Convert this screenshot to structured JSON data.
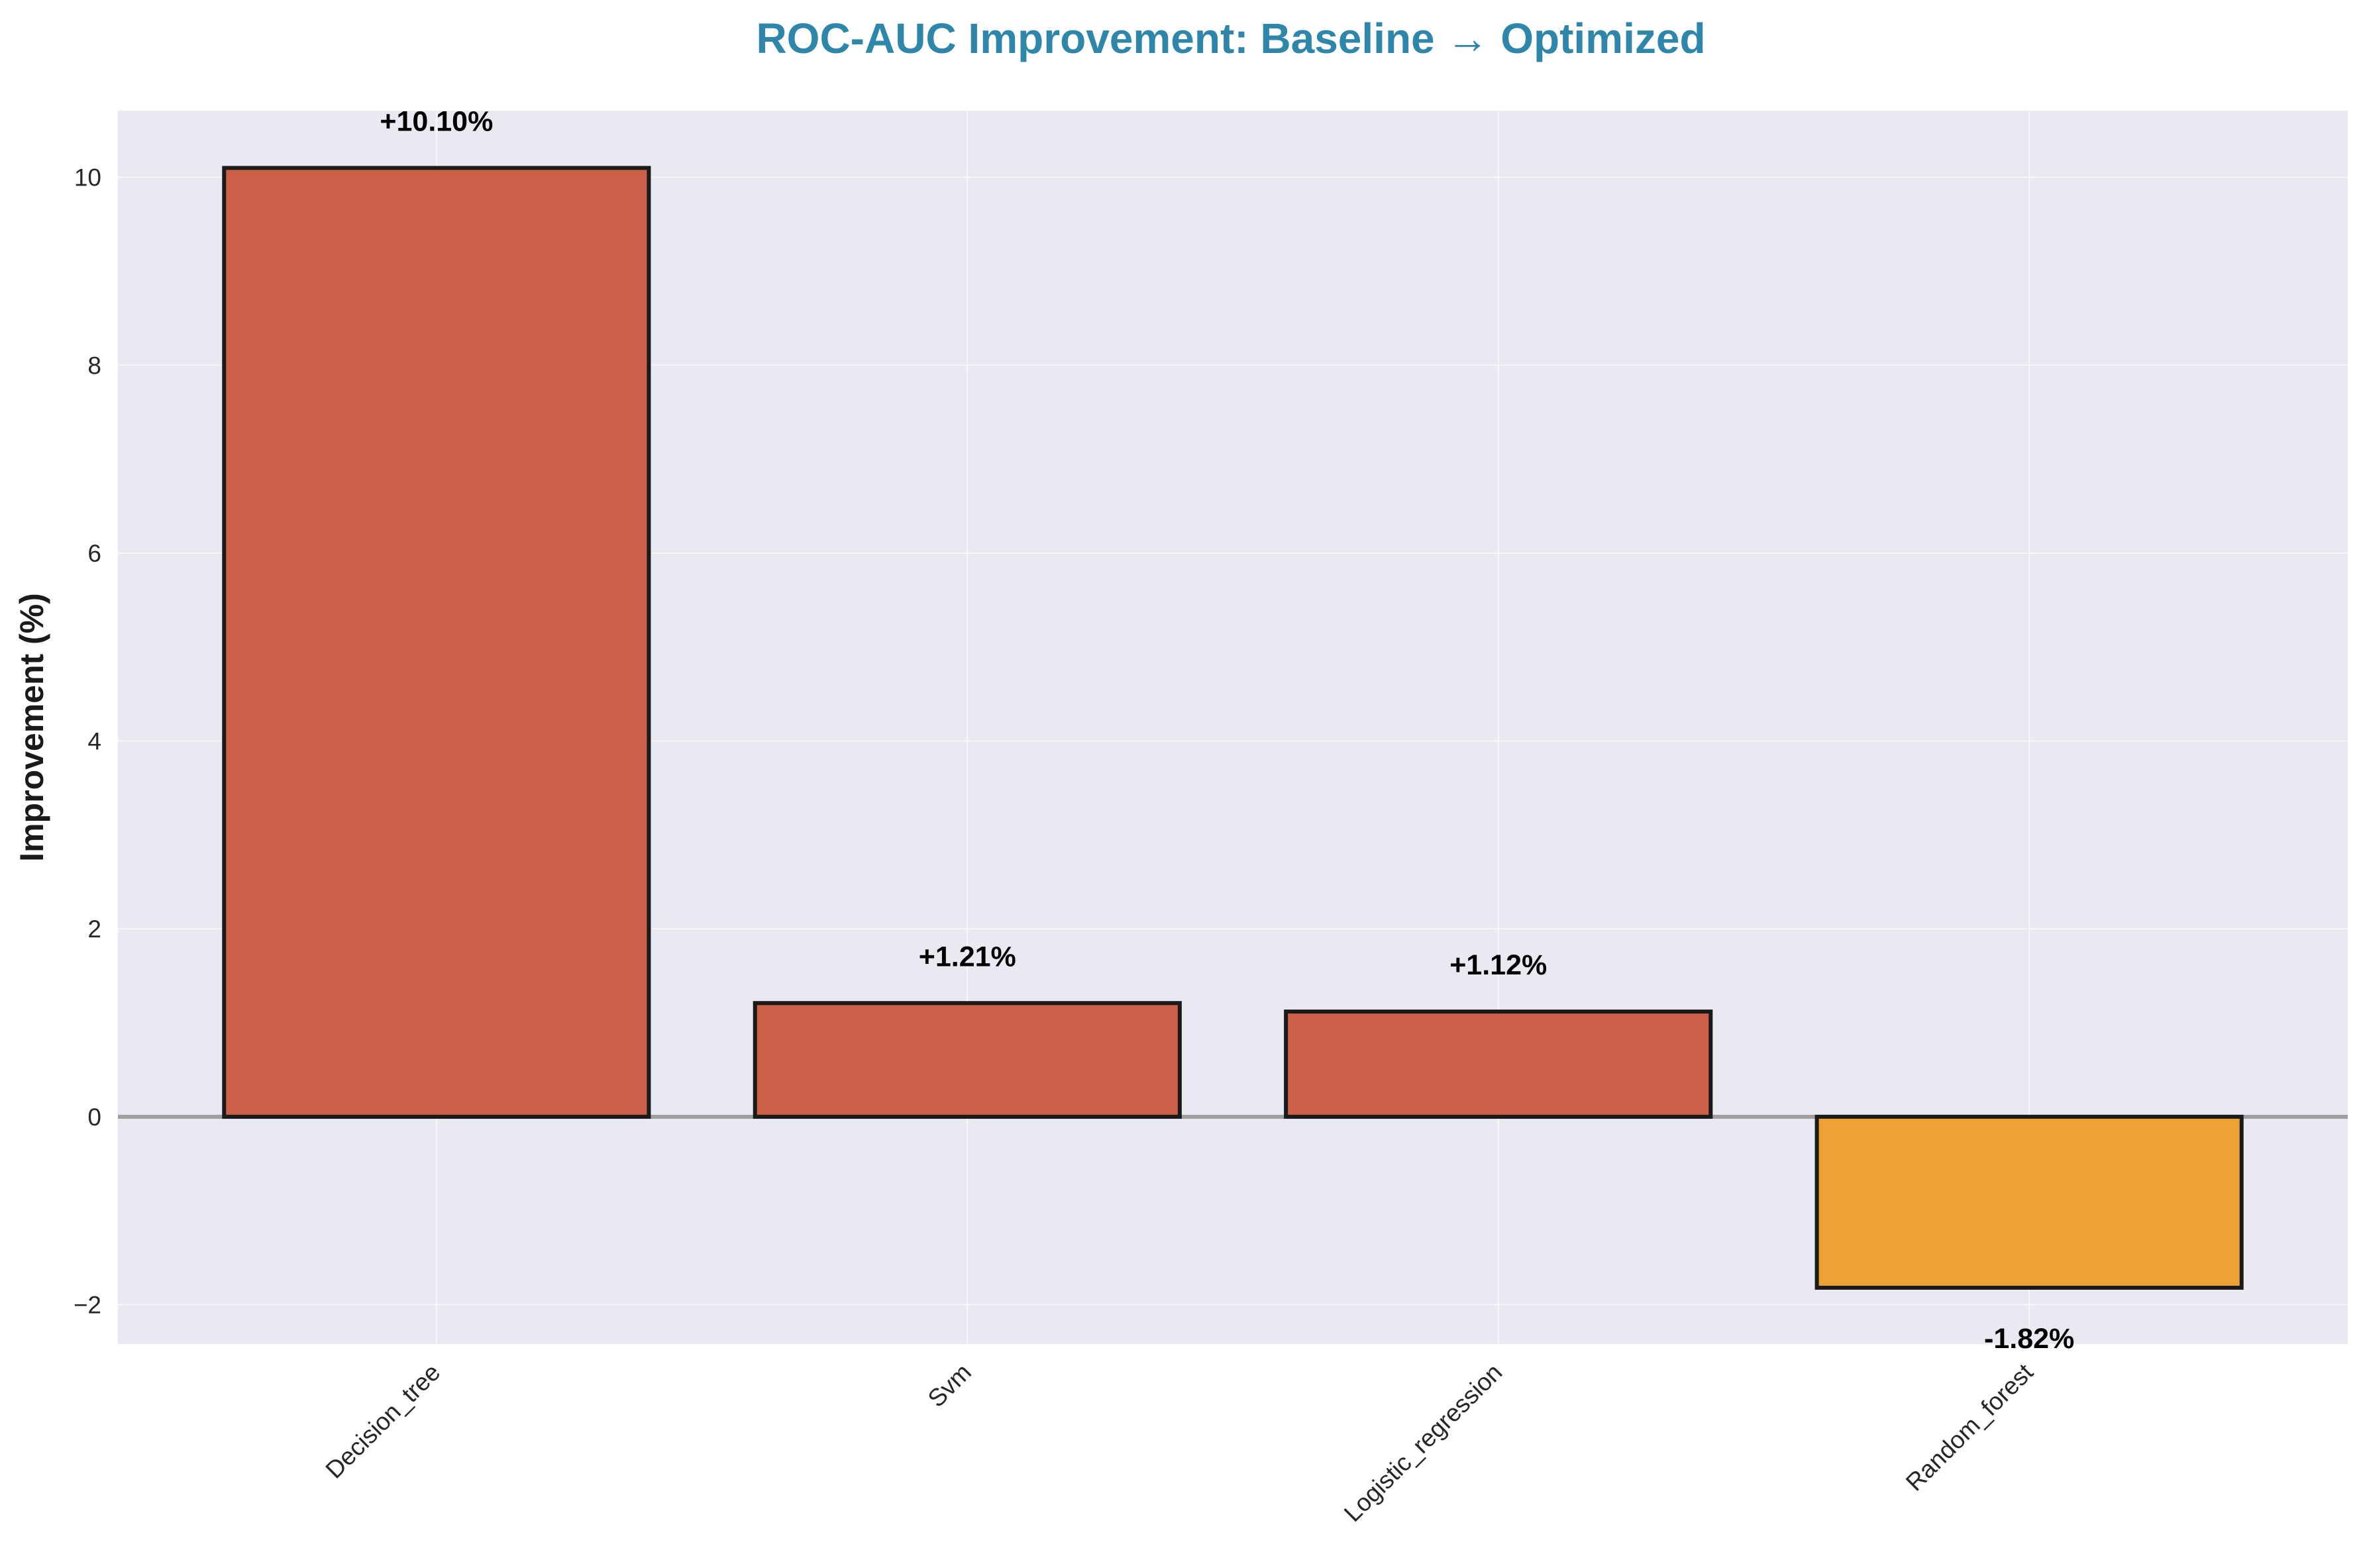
{
  "chart_data": {
    "type": "bar",
    "title": "ROC-AUC Improvement: Baseline → Optimized",
    "xlabel": "",
    "ylabel": "Improvement (%)",
    "categories": [
      "Decision_tree",
      "Svm",
      "Logistic_regression",
      "Random_forest"
    ],
    "values": [
      10.1,
      1.21,
      1.12,
      -1.82
    ],
    "data_labels": [
      "+10.10%",
      "+1.21%",
      "+1.12%",
      "-1.82%"
    ],
    "ylim": [
      -2.42,
      10.71
    ],
    "yticks": [
      -2,
      0,
      2,
      4,
      6,
      8,
      10
    ],
    "ytick_labels": [
      "−2",
      "0",
      "2",
      "4",
      "6",
      "8",
      "10"
    ],
    "grid": true,
    "colors": {
      "positive": "#CC6048",
      "negative": "#EEA235",
      "edge": "#1a1a1a",
      "title": "#2E86AB",
      "plot_bg": "#E9E9F1",
      "grid": "#F7F7FA",
      "zero_line": "#9E9E9E"
    }
  }
}
